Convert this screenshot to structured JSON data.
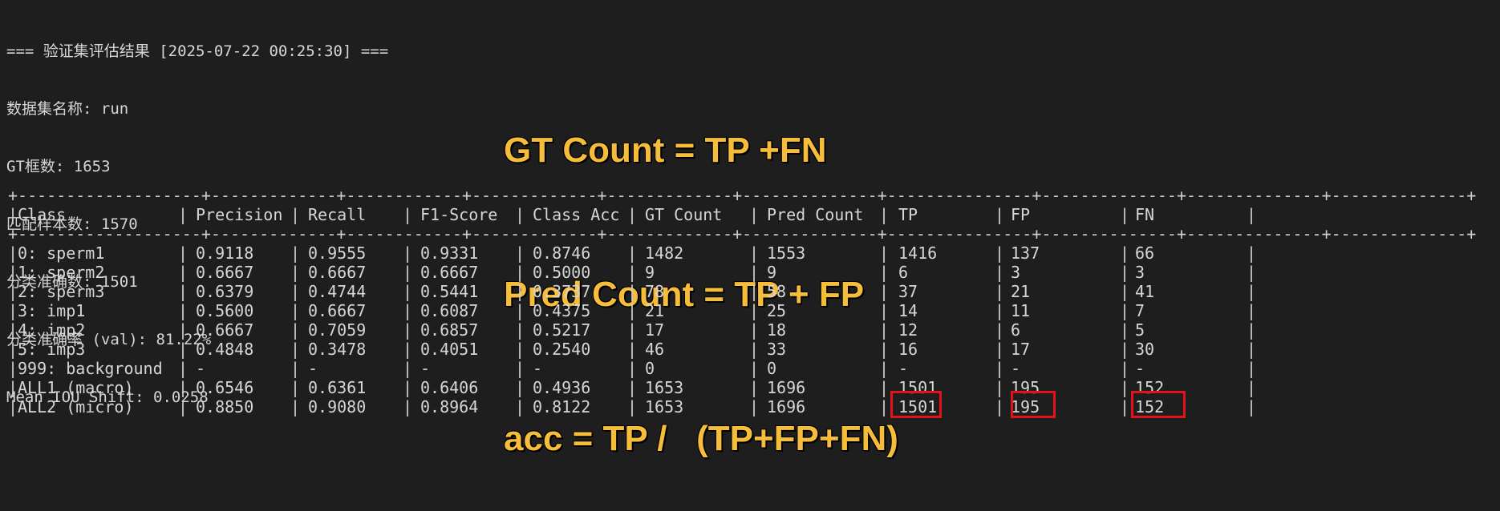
{
  "summary": {
    "header": "=== 验证集评估结果 [2025-07-22 00:25:30] ===",
    "dataset": "数据集名称: run",
    "gt_boxes": "GT框数: 1653",
    "matched": "匹配样本数: 1570",
    "correct": "分类准确数: 1501",
    "accuracy": "分类准确率 (val): 81.22%",
    "iou": "Mean IOU Shift: 0.0258"
  },
  "annotation": {
    "line1": "GT Count = TP +FN",
    "line2": "Pred Count = TP + FP",
    "line3": "acc = TP /   (TP+FP+FN)",
    "color": "#f6bd3a"
  },
  "table": {
    "border": "+-------------------+-------------+------------+-------------+-------------+--------------+---------------+--------------+--------------+--------------+",
    "headers": [
      "Class",
      "Precision",
      "Recall",
      "F1-Score",
      "Class Acc",
      "GT Count",
      "Pred Count",
      "TP",
      "FP",
      "FN"
    ],
    "rows": [
      [
        "0: sperm1",
        "0.9118",
        "0.9555",
        "0.9331",
        "0.8746",
        "1482",
        "1553",
        "1416",
        "137",
        "66"
      ],
      [
        "1: sperm2",
        "0.6667",
        "0.6667",
        "0.6667",
        "0.5000",
        "9",
        "9",
        "6",
        "3",
        "3"
      ],
      [
        "2: sperm3",
        "0.6379",
        "0.4744",
        "0.5441",
        "0.3737",
        "78",
        "58",
        "37",
        "21",
        "41"
      ],
      [
        "3: imp1",
        "0.5600",
        "0.6667",
        "0.6087",
        "0.4375",
        "21",
        "25",
        "14",
        "11",
        "7"
      ],
      [
        "4: imp2",
        "0.6667",
        "0.7059",
        "0.6857",
        "0.5217",
        "17",
        "18",
        "12",
        "6",
        "5"
      ],
      [
        "5: imp3",
        "0.4848",
        "0.3478",
        "0.4051",
        "0.2540",
        "46",
        "33",
        "16",
        "17",
        "30"
      ],
      [
        "999: background",
        "-",
        "-",
        "-",
        "-",
        "0",
        "0",
        "-",
        "-",
        "-"
      ],
      [
        "ALL1 (macro)",
        "0.6546",
        "0.6361",
        "0.6406",
        "0.4936",
        "1653",
        "1696",
        "1501",
        "195",
        "152"
      ],
      [
        "ALL2 (micro)",
        "0.8850",
        "0.9080",
        "0.8964",
        "0.8122",
        "1653",
        "1696",
        "1501",
        "195",
        "152"
      ]
    ],
    "highlight_color": "#e3121b"
  }
}
